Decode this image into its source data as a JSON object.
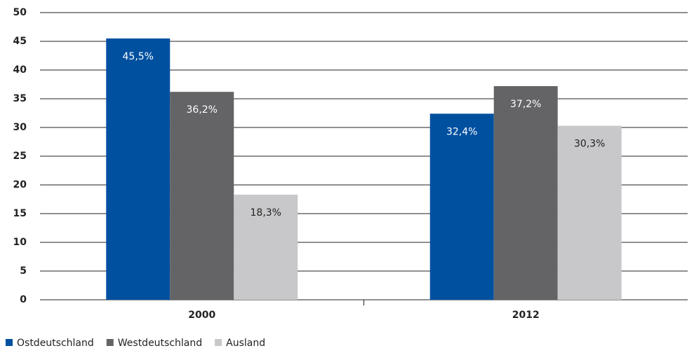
{
  "chart_data": {
    "type": "bar",
    "categories": [
      "2000",
      "2012"
    ],
    "series": [
      {
        "name": "Ostdeutschland",
        "color": "#0050a0",
        "values": [
          45.5,
          32.4
        ],
        "value_labels": [
          "45,5%",
          "32,4%"
        ],
        "label_color": "#ffffff"
      },
      {
        "name": "Westdeutschland",
        "color": "#646466",
        "values": [
          36.2,
          37.2
        ],
        "value_labels": [
          "36,2%",
          "37,2%"
        ],
        "label_color": "#ffffff"
      },
      {
        "name": "Ausland",
        "color": "#c8c8ca",
        "values": [
          18.3,
          30.3
        ],
        "value_labels": [
          "18,3%",
          "30,3%"
        ],
        "label_color": "#222222"
      }
    ],
    "ylim": [
      0,
      50
    ],
    "yticks": [
      0,
      5,
      10,
      15,
      20,
      25,
      30,
      35,
      40,
      45,
      50
    ],
    "grid": true,
    "legend": "bottom-left"
  }
}
